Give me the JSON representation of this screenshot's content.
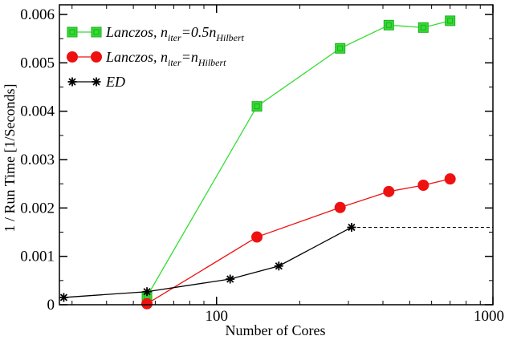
{
  "chart_data": {
    "type": "line",
    "xlabel": "Number of Cores",
    "ylabel": "1 / Run Time [1/Seconds]",
    "x_scale": "log",
    "xlim": [
      27,
      1000
    ],
    "ylim": [
      0,
      0.0062
    ],
    "x_ticks": [
      {
        "value": 100,
        "label": "100"
      },
      {
        "value": 1000,
        "label": "1000"
      }
    ],
    "y_ticks": [
      {
        "value": 0,
        "label": "0"
      },
      {
        "value": 0.001,
        "label": "0.001"
      },
      {
        "value": 0.002,
        "label": "0.002"
      },
      {
        "value": 0.003,
        "label": "0.003"
      },
      {
        "value": 0.004,
        "label": "0.004"
      },
      {
        "value": 0.005,
        "label": "0.005"
      },
      {
        "value": 0.006,
        "label": "0.006"
      }
    ],
    "grid": false,
    "legend_position": "top-left",
    "series": [
      {
        "name": "Lanczos, n_iter=0.5n_Hilbert",
        "legend": {
          "prefix": "Lanczos, n",
          "sub1": "iter",
          "mid": "=0.5n",
          "sub2": "Hilbert"
        },
        "color": "#33dd33",
        "marker": "square",
        "points": [
          [
            56,
            0.00017
          ],
          [
            140,
            0.0041
          ],
          [
            280,
            0.0053
          ],
          [
            420,
            0.00578
          ],
          [
            560,
            0.00573
          ],
          [
            700,
            0.00587
          ]
        ]
      },
      {
        "name": "Lanczos, n_iter=n_Hilbert",
        "legend": {
          "prefix": "Lanczos, n",
          "sub1": "iter",
          "mid": "=n",
          "sub2": "Hilbert"
        },
        "color": "#ee1111",
        "marker": "circle",
        "points": [
          [
            56,
            2e-05
          ],
          [
            140,
            0.0014
          ],
          [
            280,
            0.00201
          ],
          [
            420,
            0.00234
          ],
          [
            560,
            0.00247
          ],
          [
            700,
            0.0026
          ]
        ]
      },
      {
        "name": "ED",
        "legend": {
          "prefix": "ED",
          "sub1": "",
          "mid": "",
          "sub2": ""
        },
        "color": "#000000",
        "marker": "asterisk",
        "points": [
          [
            28,
            0.00015
          ],
          [
            56,
            0.00027
          ],
          [
            112,
            0.00053
          ],
          [
            168,
            0.0008
          ],
          [
            308,
            0.0016
          ]
        ],
        "extension": {
          "from": [
            308,
            0.0016
          ],
          "to": [
            1000,
            0.0016
          ],
          "style": "dashed"
        }
      }
    ]
  }
}
